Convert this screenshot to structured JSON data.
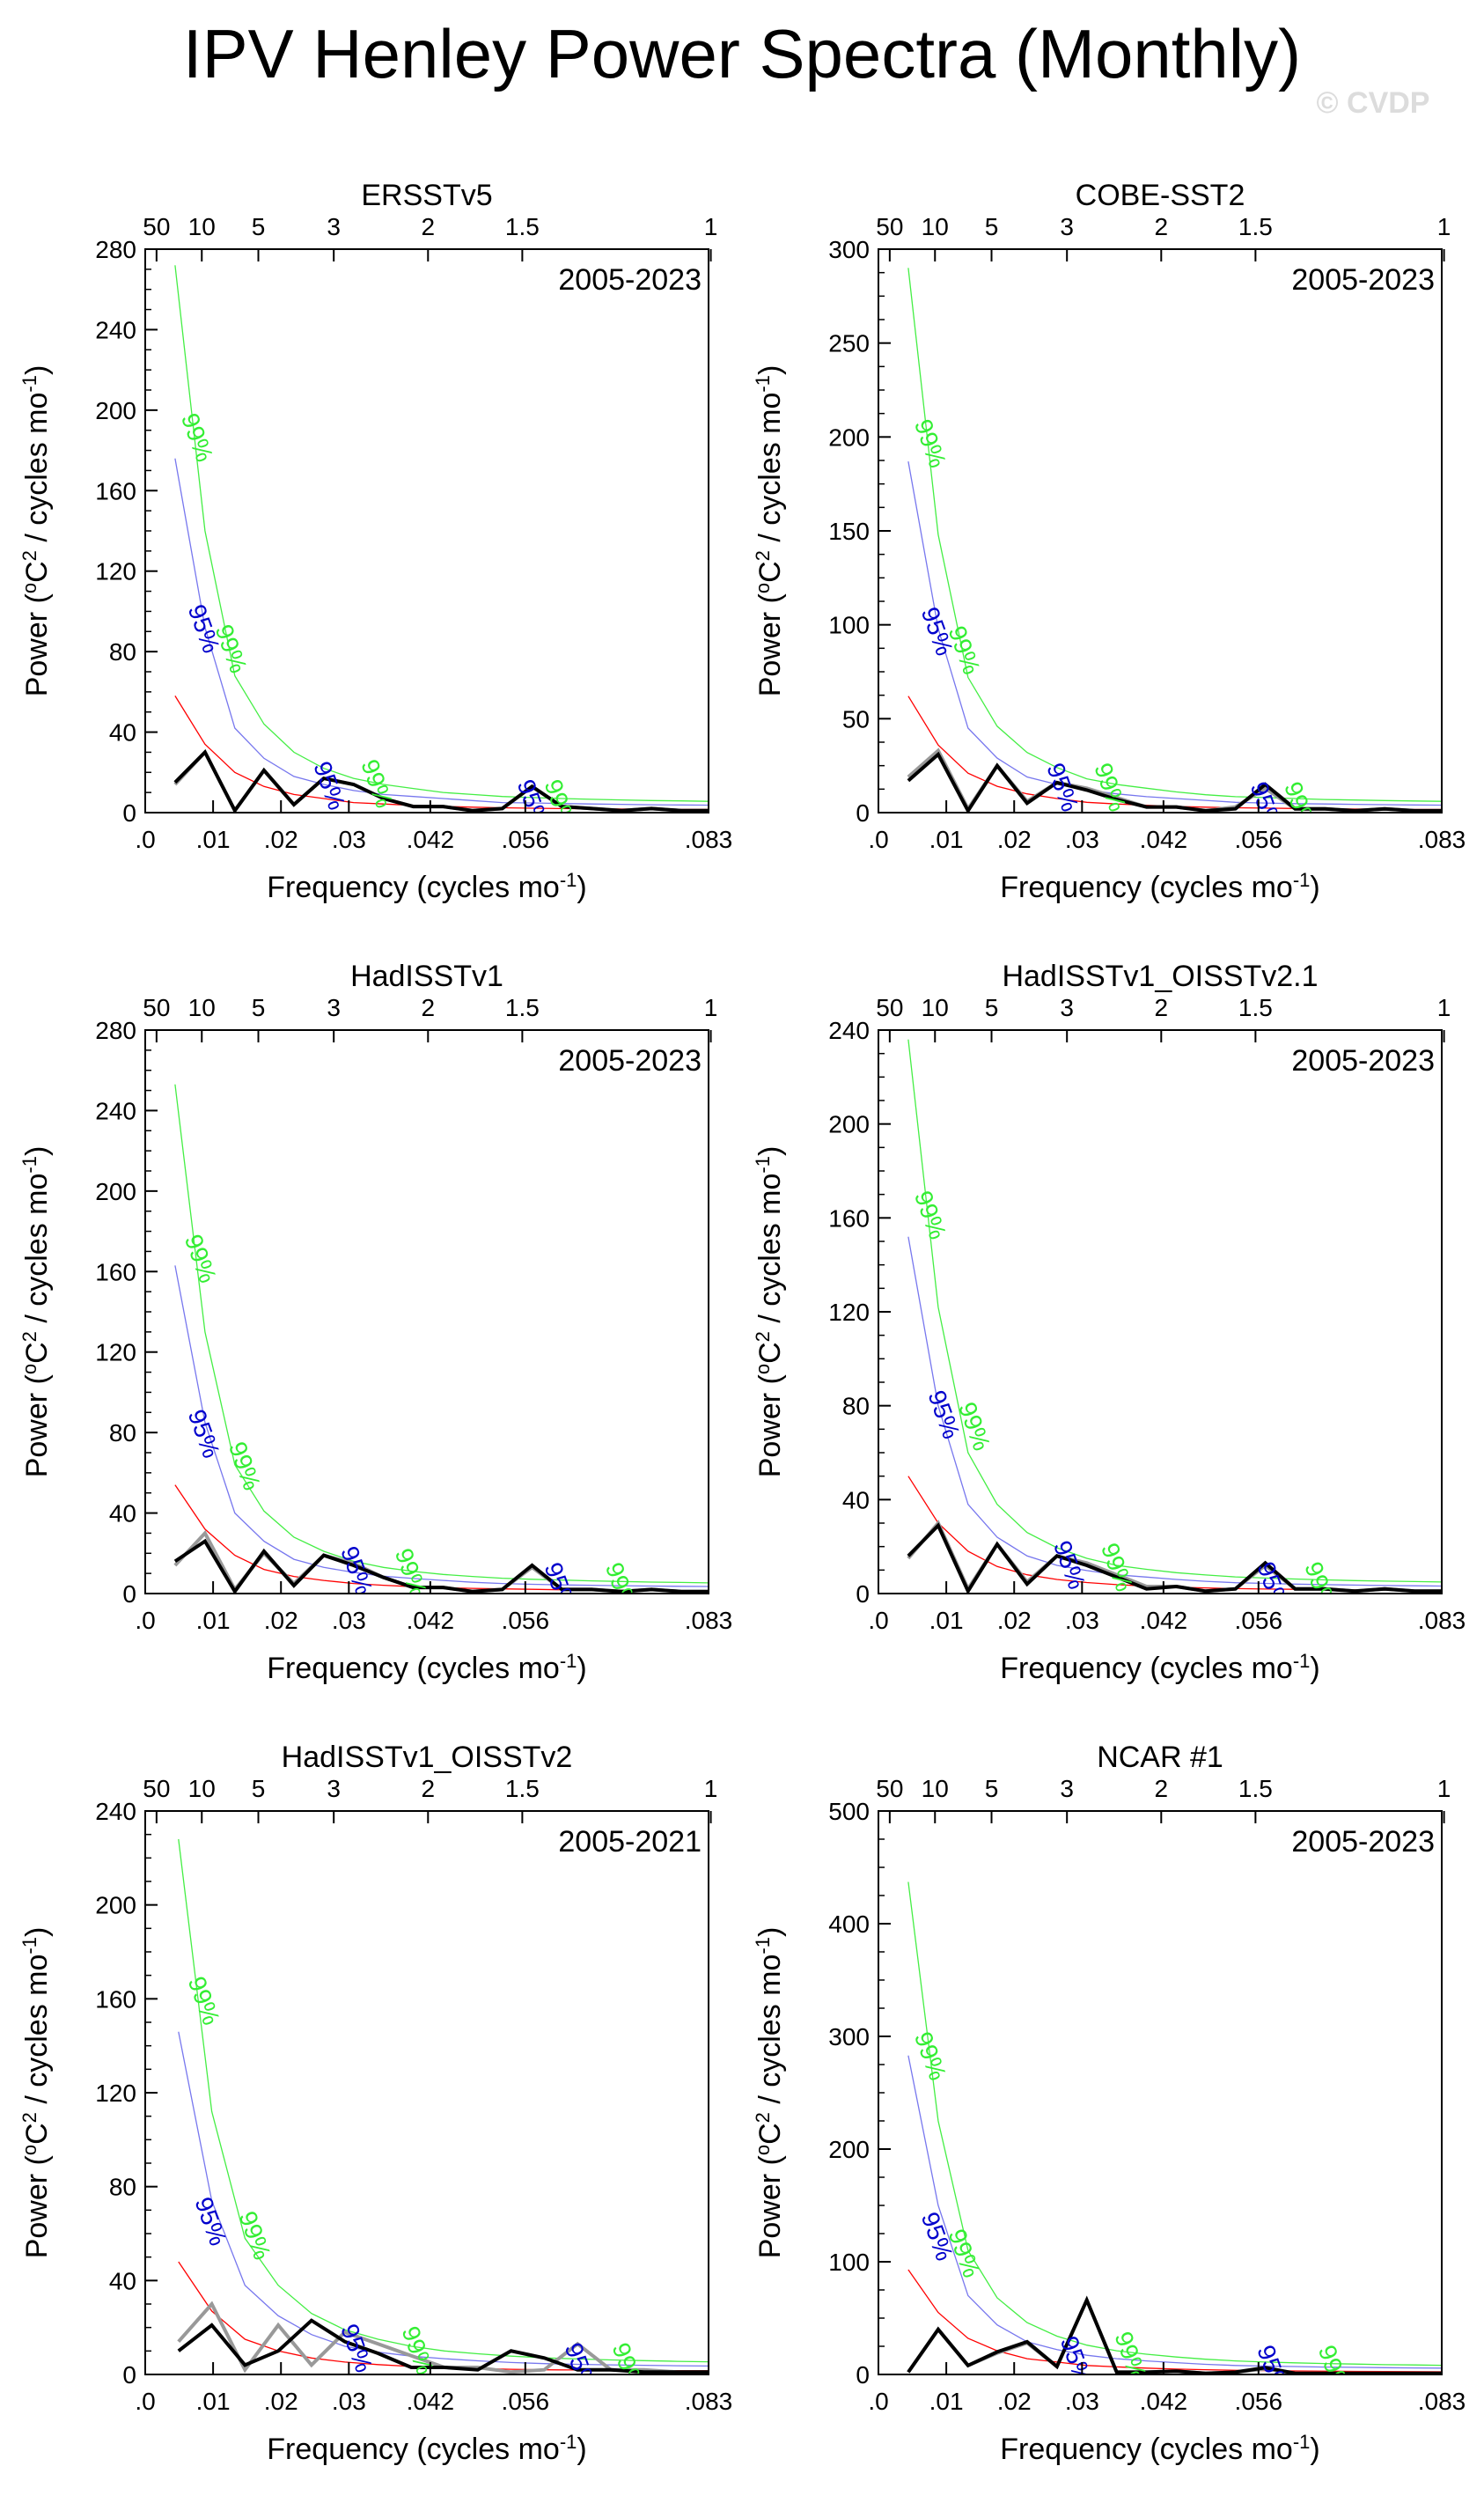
{
  "figure": {
    "title": "IPV Henley Power Spectra (Monthly)",
    "watermark": "© CVDP"
  },
  "colors": {
    "spectrum": "#000000",
    "spectrum_gray": "#999999",
    "red_noise": "#ff0000",
    "ci95": "#7777ee",
    "ci99": "#44ee44",
    "ci95_label": "#0000cc",
    "ci99_label": "#33ee33"
  },
  "shared_axes": {
    "xlabel": "Frequency (cycles mo",
    "xlabel_sup": "-1",
    "xlabel_close": ")",
    "ylabel": "Power (",
    "ylabel_sup1": "o",
    "ylabel_mid": "C",
    "ylabel_sup2": "2",
    "ylabel_tail": " / cycles mo",
    "ylabel_sup3": "-1",
    "ylabel_close": ")",
    "x_ticks": [
      0.0,
      0.01,
      0.02,
      0.03,
      0.042,
      0.056,
      0.083
    ],
    "x_tick_labels": [
      ".0",
      ".01",
      ".02",
      ".03",
      ".042",
      ".056",
      ".083"
    ],
    "top_ticks": [
      50,
      10,
      5,
      3,
      2,
      1.5,
      1
    ],
    "top_tick_labels": [
      "50",
      "10",
      "5",
      "3",
      "2",
      "1.5",
      "1"
    ],
    "xlim": [
      0.0,
      0.083
    ],
    "label95": "95%",
    "label99": "99%"
  },
  "chart_data": [
    {
      "type": "line",
      "title": "ERSSTv5",
      "period": "2005-2023",
      "ylim": [
        0,
        280
      ],
      "yticks": [
        0,
        40,
        80,
        120,
        160,
        200,
        240,
        280
      ],
      "x": [
        0.0044,
        0.0088,
        0.0132,
        0.0175,
        0.0219,
        0.0263,
        0.0307,
        0.0351,
        0.0395,
        0.0439,
        0.0482,
        0.0526,
        0.057,
        0.0614,
        0.0658,
        0.0702,
        0.0746,
        0.079,
        0.083
      ],
      "series": [
        {
          "name": "spectrum_gray",
          "values": [
            14,
            30,
            1,
            21,
            4,
            17,
            14,
            7,
            3,
            3,
            1,
            2,
            13,
            3,
            2,
            1,
            2,
            1,
            1
          ]
        },
        {
          "name": "spectrum",
          "values": [
            15,
            30,
            1,
            21,
            4,
            17,
            14,
            7,
            3,
            3,
            1,
            2,
            13,
            3,
            2,
            1,
            2,
            1,
            1
          ]
        },
        {
          "name": "red_noise",
          "values": [
            58,
            34,
            20,
            13,
            9,
            7,
            5,
            4.3,
            3.6,
            3.1,
            2.7,
            2.4,
            2.2,
            2.0,
            1.9,
            1.8,
            1.7,
            1.6,
            1.6
          ]
        },
        {
          "name": "ci95",
          "values": [
            176,
            92,
            42,
            27,
            18,
            14,
            11,
            9,
            8,
            7,
            6,
            5,
            4.8,
            4.5,
            4.3,
            4.1,
            3.9,
            3.8,
            3.7
          ]
        },
        {
          "name": "ci99",
          "values": [
            272,
            140,
            68,
            44,
            30,
            22,
            17,
            14,
            12,
            10,
            9,
            8,
            7.5,
            7,
            6.6,
            6.3,
            6,
            5.8,
            5.6
          ]
        }
      ],
      "labels95": [
        [
          0.0075,
          90
        ],
        [
          0.026,
          12
        ],
        [
          0.056,
          3
        ]
      ],
      "labels99": [
        [
          0.0065,
          185
        ],
        [
          0.0115,
          80
        ],
        [
          0.033,
          13
        ],
        [
          0.06,
          3
        ]
      ]
    },
    {
      "type": "line",
      "title": "COBE-SST2",
      "period": "2005-2023",
      "ylim": [
        0,
        300
      ],
      "yticks": [
        0,
        50,
        100,
        150,
        200,
        250,
        300
      ],
      "x": [
        0.0044,
        0.0088,
        0.0132,
        0.0175,
        0.0219,
        0.0263,
        0.0307,
        0.0351,
        0.0395,
        0.0439,
        0.0482,
        0.0526,
        0.057,
        0.0614,
        0.0658,
        0.0702,
        0.0746,
        0.079,
        0.083
      ],
      "series": [
        {
          "name": "spectrum_gray",
          "values": [
            19,
            33,
            2,
            25,
            6,
            16,
            13,
            8,
            3,
            3,
            1,
            3,
            13,
            2,
            2,
            1,
            2,
            1,
            1
          ]
        },
        {
          "name": "spectrum",
          "values": [
            17,
            31,
            1,
            25,
            5,
            16,
            12,
            7,
            3,
            3,
            1,
            2,
            15,
            2,
            2,
            1,
            2,
            1,
            1
          ]
        },
        {
          "name": "red_noise",
          "values": [
            62,
            36,
            21,
            14,
            10,
            7.5,
            5.5,
            4.6,
            3.9,
            3.3,
            2.9,
            2.6,
            2.4,
            2.2,
            2.0,
            1.9,
            1.8,
            1.7,
            1.7
          ]
        },
        {
          "name": "ci95",
          "values": [
            187,
            98,
            45,
            29,
            19,
            15,
            12,
            10,
            8.5,
            7.5,
            6.5,
            5.5,
            5.1,
            4.8,
            4.6,
            4.4,
            4.2,
            4.1,
            4.0
          ]
        },
        {
          "name": "ci99",
          "values": [
            290,
            148,
            72,
            46,
            32,
            24,
            18,
            15,
            13,
            11,
            9.5,
            8.5,
            8,
            7.5,
            7,
            6.7,
            6.4,
            6.2,
            6
          ]
        }
      ],
      "labels95": [
        [
          0.0075,
          95
        ],
        [
          0.026,
          12
        ],
        [
          0.056,
          2
        ]
      ],
      "labels99": [
        [
          0.0065,
          195
        ],
        [
          0.0115,
          85
        ],
        [
          0.033,
          12
        ],
        [
          0.061,
          2
        ]
      ]
    },
    {
      "type": "line",
      "title": "HadISSTv1",
      "period": "2005-2023",
      "ylim": [
        0,
        280
      ],
      "yticks": [
        0,
        40,
        80,
        120,
        160,
        200,
        240,
        280
      ],
      "x": [
        0.0044,
        0.0088,
        0.0132,
        0.0175,
        0.0219,
        0.0263,
        0.0307,
        0.0351,
        0.0395,
        0.0439,
        0.0482,
        0.0526,
        0.057,
        0.0614,
        0.0658,
        0.0702,
        0.0746,
        0.079,
        0.083
      ],
      "series": [
        {
          "name": "spectrum_gray",
          "values": [
            14,
            30,
            2,
            20,
            5,
            19,
            15,
            8,
            3,
            3,
            1,
            2,
            13,
            2,
            2,
            1,
            2,
            1,
            1
          ]
        },
        {
          "name": "spectrum",
          "values": [
            16,
            26,
            1,
            21,
            4,
            19,
            14,
            8,
            3,
            3,
            1,
            2,
            14,
            2,
            2,
            1,
            2,
            1,
            1
          ]
        },
        {
          "name": "red_noise",
          "values": [
            54,
            32,
            19,
            12,
            8.5,
            6.5,
            5,
            4.1,
            3.4,
            2.9,
            2.6,
            2.3,
            2.1,
            1.9,
            1.8,
            1.7,
            1.6,
            1.5,
            1.5
          ]
        },
        {
          "name": "ci95",
          "values": [
            163,
            85,
            40,
            26,
            17,
            13,
            10.5,
            8.6,
            7.5,
            6.5,
            5.6,
            5,
            4.6,
            4.3,
            4.1,
            3.9,
            3.7,
            3.6,
            3.5
          ]
        },
        {
          "name": "ci99",
          "values": [
            253,
            130,
            64,
            41,
            28,
            21,
            16,
            13,
            11,
            9.5,
            8.5,
            7.6,
            7.1,
            6.7,
            6.3,
            6,
            5.7,
            5.5,
            5.3
          ]
        }
      ],
      "labels95": [
        [
          0.0075,
          78
        ],
        [
          0.03,
          10
        ],
        [
          0.06,
          2
        ]
      ],
      "labels99": [
        [
          0.007,
          165
        ],
        [
          0.0135,
          62
        ],
        [
          0.038,
          9
        ],
        [
          0.069,
          2
        ]
      ]
    },
    {
      "type": "line",
      "title": "HadISSTv1_OISSTv2.1",
      "period": "2005-2023",
      "ylim": [
        0,
        240
      ],
      "yticks": [
        0,
        40,
        80,
        120,
        160,
        200,
        240
      ],
      "x": [
        0.0044,
        0.0088,
        0.0132,
        0.0175,
        0.0219,
        0.0263,
        0.0307,
        0.0351,
        0.0395,
        0.0439,
        0.0482,
        0.0526,
        0.057,
        0.0614,
        0.0658,
        0.0702,
        0.0746,
        0.079,
        0.083
      ],
      "series": [
        {
          "name": "spectrum_gray",
          "values": [
            15,
            30,
            2,
            21,
            5,
            16,
            13,
            8,
            3,
            3,
            1,
            2,
            12,
            2,
            2,
            1,
            2,
            1,
            1
          ]
        },
        {
          "name": "spectrum",
          "values": [
            16,
            29,
            1,
            21,
            4,
            16,
            12,
            7,
            2,
            3,
            1,
            2,
            13,
            2,
            2,
            1,
            2,
            1,
            1
          ]
        },
        {
          "name": "red_noise",
          "values": [
            50,
            30,
            18,
            11.5,
            8,
            6,
            4.7,
            3.8,
            3.2,
            2.7,
            2.4,
            2.1,
            1.9,
            1.8,
            1.7,
            1.6,
            1.5,
            1.4,
            1.4
          ]
        },
        {
          "name": "ci95",
          "values": [
            152,
            80,
            38,
            24,
            16,
            12,
            9.8,
            8,
            7,
            6,
            5.2,
            4.6,
            4.3,
            4,
            3.8,
            3.6,
            3.4,
            3.3,
            3.2
          ]
        },
        {
          "name": "ci99",
          "values": [
            236,
            122,
            60,
            38,
            26,
            19.5,
            15,
            12,
            10.3,
            8.9,
            7.9,
            7.1,
            6.6,
            6.2,
            5.8,
            5.5,
            5.3,
            5.1,
            4.9
          ]
        }
      ],
      "labels95": [
        [
          0.0085,
          75
        ],
        [
          0.027,
          11
        ],
        [
          0.057,
          2
        ]
      ],
      "labels99": [
        [
          0.0065,
          160
        ],
        [
          0.013,
          70
        ],
        [
          0.034,
          10
        ],
        [
          0.064,
          2
        ]
      ]
    },
    {
      "type": "line",
      "title": "HadISSTv1_OISSTv2",
      "period": "2005-2021",
      "ylim": [
        0,
        240
      ],
      "yticks": [
        0,
        40,
        80,
        120,
        160,
        200,
        240
      ],
      "x": [
        0.0049,
        0.0098,
        0.0147,
        0.0196,
        0.0245,
        0.0294,
        0.0343,
        0.0392,
        0.0441,
        0.049,
        0.0539,
        0.0588,
        0.0637,
        0.0686,
        0.0735,
        0.0784,
        0.083
      ],
      "series": [
        {
          "name": "spectrum_gray",
          "values": [
            14,
            30,
            2,
            21,
            4,
            18,
            13,
            8,
            3,
            3,
            1,
            2,
            13,
            2,
            2,
            1,
            1
          ]
        },
        {
          "name": "spectrum",
          "values": [
            10,
            21,
            4,
            10,
            23,
            14,
            9,
            3,
            3,
            2,
            10,
            7,
            2,
            2,
            1,
            1,
            1
          ]
        },
        {
          "name": "red_noise",
          "values": [
            48,
            27,
            15,
            10,
            7,
            5.3,
            4.2,
            3.4,
            2.9,
            2.5,
            2.2,
            2.0,
            1.9,
            1.8,
            1.7,
            1.6,
            1.6
          ]
        },
        {
          "name": "ci95",
          "values": [
            146,
            74,
            38,
            25,
            17,
            12,
            9.5,
            7.8,
            6.7,
            5.8,
            5.1,
            4.6,
            4.3,
            4.1,
            3.9,
            3.7,
            3.6
          ]
        },
        {
          "name": "ci99",
          "values": [
            228,
            112,
            58,
            38,
            26,
            19,
            15,
            12,
            10,
            8.8,
            7.8,
            7.1,
            6.6,
            6.2,
            5.9,
            5.6,
            5.4
          ]
        }
      ],
      "labels95": [
        [
          0.0085,
          64
        ],
        [
          0.03,
          10
        ],
        [
          0.063,
          2
        ]
      ],
      "labels99": [
        [
          0.0075,
          158
        ],
        [
          0.015,
          58
        ],
        [
          0.039,
          9
        ],
        [
          0.07,
          2
        ]
      ]
    },
    {
      "type": "line",
      "title": "NCAR #1",
      "period": "2005-2023",
      "ylim": [
        0,
        500
      ],
      "yticks": [
        0,
        100,
        200,
        300,
        400,
        500
      ],
      "x": [
        0.0044,
        0.0088,
        0.0132,
        0.0175,
        0.0219,
        0.0263,
        0.0307,
        0.0351,
        0.0395,
        0.0439,
        0.0482,
        0.0526,
        0.057,
        0.0614,
        0.0658,
        0.0702,
        0.0746,
        0.079,
        0.083
      ],
      "series": [
        {
          "name": "spectrum_gray",
          "values": [
            2,
            40,
            8,
            19,
            28,
            7,
            66,
            2,
            2,
            3,
            1,
            2,
            5,
            1,
            1,
            1,
            1,
            1,
            1
          ]
        },
        {
          "name": "spectrum",
          "values": [
            2,
            40,
            8,
            20,
            29,
            7,
            66,
            2,
            2,
            3,
            1,
            2,
            6,
            1,
            1,
            1,
            1,
            1,
            1
          ]
        },
        {
          "name": "red_noise",
          "values": [
            93,
            55,
            32,
            21,
            14,
            11,
            8,
            6.7,
            5.6,
            4.8,
            4.2,
            3.7,
            3.4,
            3.1,
            2.9,
            2.7,
            2.6,
            2.5,
            2.4
          ]
        },
        {
          "name": "ci95",
          "values": [
            283,
            150,
            70,
            44,
            29,
            22,
            17,
            14,
            12,
            10.5,
            9,
            8,
            7.4,
            7,
            6.6,
            6.3,
            6,
            5.8,
            5.6
          ]
        },
        {
          "name": "ci99",
          "values": [
            437,
            225,
            110,
            68,
            46,
            34,
            26,
            21,
            18,
            15.5,
            13.5,
            12,
            11,
            10.3,
            9.7,
            9.2,
            8.7,
            8.4,
            8.1
          ]
        }
      ],
      "labels95": [
        [
          0.0075,
          120
        ],
        [
          0.028,
          10
        ],
        [
          0.057,
          2
        ]
      ],
      "labels99": [
        [
          0.0065,
          280
        ],
        [
          0.0115,
          105
        ],
        [
          0.036,
          14
        ],
        [
          0.066,
          2
        ]
      ]
    }
  ]
}
